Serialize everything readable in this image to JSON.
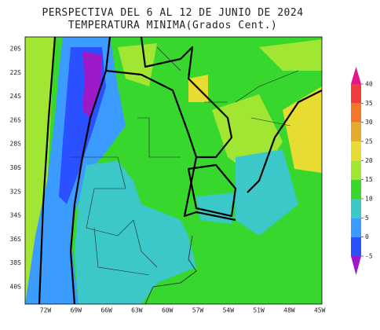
{
  "header": {
    "title": [
      "PERSPECTIVA DEL 6 AL 12 DE JUNIO DE 2024",
      "TEMPERATURA MINIMA(Grados Cent.)"
    ]
  },
  "map": {
    "lat_labels": [
      "20S",
      "22S",
      "24S",
      "26S",
      "28S",
      "30S",
      "32S",
      "34S",
      "36S",
      "38S",
      "40S"
    ],
    "lon_labels": [
      "72W",
      "69W",
      "66W",
      "63W",
      "60W",
      "57W",
      "54W",
      "51W",
      "48W",
      "45W"
    ]
  },
  "colorbar": {
    "ticks": [
      -5,
      0,
      5,
      10,
      15,
      20,
      25,
      30,
      35,
      40
    ],
    "colors": [
      "#9d19c8",
      "#2a50ff",
      "#3c9bff",
      "#3cc8c8",
      "#37d72d",
      "#a0e632",
      "#e6dc32",
      "#e6aa2d",
      "#f07828",
      "#f03c3c",
      "#e6148c"
    ]
  }
}
